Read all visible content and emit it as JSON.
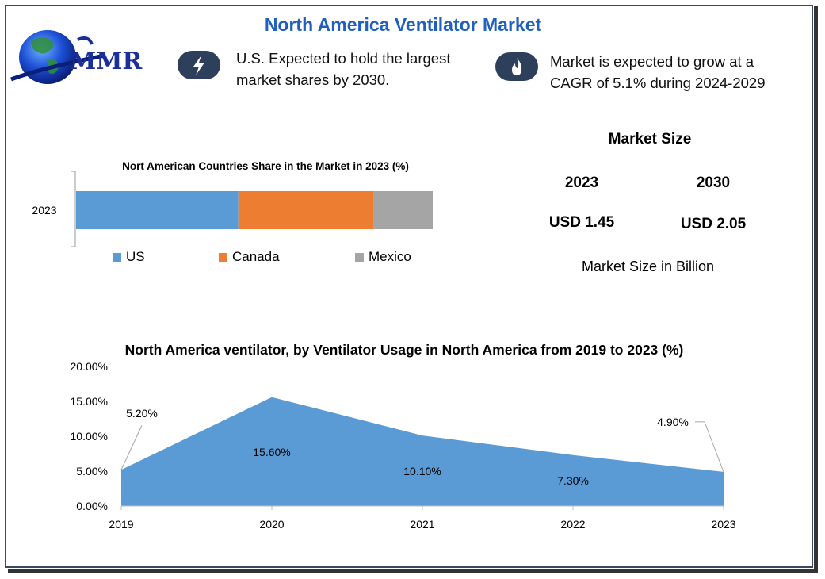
{
  "title": "North America Ventilator Market",
  "logo": {
    "text": "MMR"
  },
  "info": [
    {
      "icon": "lightning-icon",
      "lines": [
        "U.S. Expected to hold the largest",
        "market shares by 2030."
      ]
    },
    {
      "icon": "flame-icon",
      "lines": [
        "Market is expected to grow at a",
        "CAGR of 5.1% during 2024-2029"
      ]
    }
  ],
  "market_size": {
    "title": "Market Size",
    "years": [
      "2023",
      "2030"
    ],
    "values": [
      "USD 1.45",
      "USD 2.05"
    ],
    "note": "Market Size in Billion"
  },
  "colors": {
    "us": "#5b9bd5",
    "canada": "#ed7d31",
    "mexico": "#a5a5a5",
    "area": "#5b9bd5",
    "dark": "#2d3f5a"
  },
  "chart_data": [
    {
      "type": "bar",
      "orientation": "horizontal-stacked",
      "title": "Nort American Countries Share in the Market in 2023 (%)",
      "categories": [
        "2023"
      ],
      "series": [
        {
          "name": "US",
          "values": [
            45.5
          ]
        },
        {
          "name": "Canada",
          "values": [
            38
          ]
        },
        {
          "name": "Mexico",
          "values": [
            16.5
          ]
        }
      ],
      "legend": "bottom"
    },
    {
      "type": "area",
      "title": "North America ventilator, by Ventilator Usage in North America from 2019 to 2023 (%)",
      "x": [
        "2019",
        "2020",
        "2021",
        "2022",
        "2023"
      ],
      "values": [
        5.2,
        15.6,
        10.1,
        7.3,
        4.9
      ],
      "data_labels": [
        "5.20%",
        "15.60%",
        "10.10%",
        "7.30%",
        "4.90%"
      ],
      "y_ticks": [
        "0.00%",
        "5.00%",
        "10.00%",
        "15.00%",
        "20.00%"
      ],
      "ylim": [
        0,
        20
      ],
      "grid": false
    }
  ]
}
